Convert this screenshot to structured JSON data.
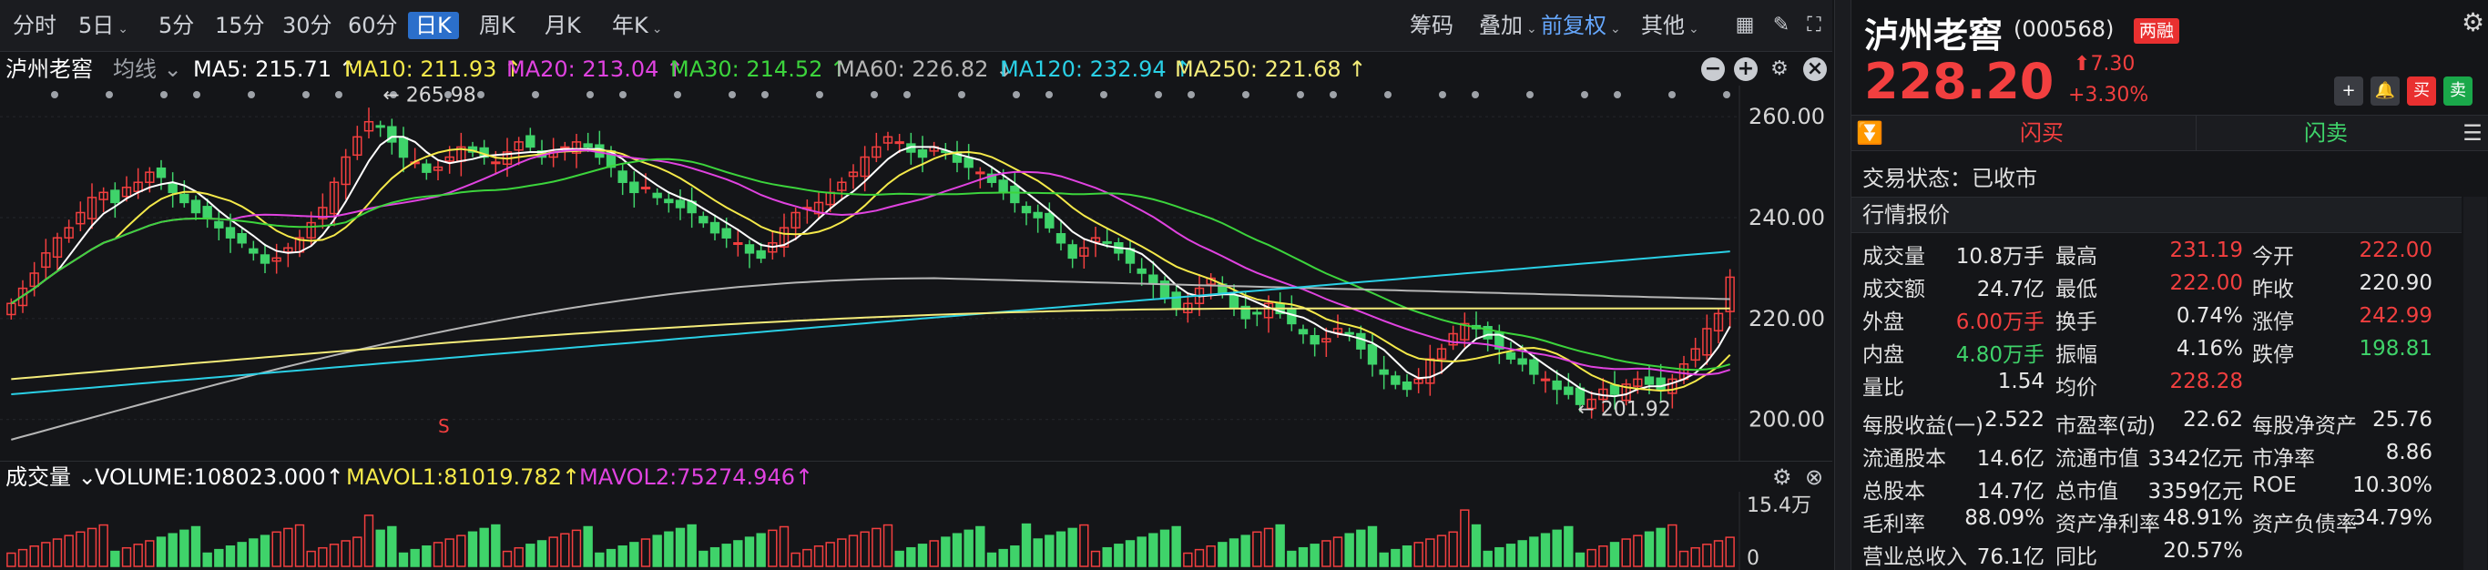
{
  "toolbar": {
    "periods": [
      "分时",
      "5日",
      "5分",
      "15分",
      "30分",
      "60分",
      "日K",
      "周K",
      "月K",
      "年K"
    ],
    "active": "日K",
    "right_items": [
      "筹码",
      "叠加",
      "前复权",
      "其他"
    ]
  },
  "ma_bar": {
    "stock": "泸州老窖",
    "type": "均线",
    "ma5": "MA5: 215.71 ↑",
    "ma10": "MA10: 211.93 ↑",
    "ma20": "MA20: 213.04 ↑",
    "ma30": "MA30: 214.52 ↑",
    "ma60": "MA60: 226.82 ↓",
    "ma120": "MA120: 232.94 ↑",
    "ma250": "MA250: 221.68 ↑"
  },
  "colors": {
    "up": "#f23f3f",
    "down": "#3fd36a",
    "ma5": "#ffffff",
    "ma10": "#f5e94a",
    "ma20": "#e043e0",
    "ma30": "#3cd43c",
    "ma60": "#b6b6b6",
    "ma120": "#2ad0e6",
    "ma250": "#f4ec7a"
  },
  "chart_data": {
    "type": "candlestick",
    "y_ticks": [
      "260.00",
      "240.00",
      "220.00",
      "200.00"
    ],
    "ylim": [
      194,
      264
    ],
    "high_label": "265.98",
    "low_label": "201.92",
    "marker": "S",
    "last_close": 228.2,
    "closes": [
      223,
      226,
      229,
      233,
      236,
      238,
      241,
      244,
      245,
      243,
      246,
      247,
      249,
      248,
      245,
      243,
      241,
      240,
      238,
      236,
      235,
      233,
      231,
      232,
      234,
      236,
      239,
      242,
      247,
      252,
      256,
      259,
      258,
      255,
      252,
      251,
      249,
      250,
      252,
      254,
      253,
      252,
      251,
      253,
      255,
      254,
      252,
      253,
      254,
      255,
      254,
      252,
      250,
      247,
      245,
      246,
      244,
      243,
      242,
      241,
      239,
      237,
      236,
      235,
      233,
      232,
      235,
      238,
      241,
      242,
      243,
      245,
      247,
      249,
      252,
      254,
      256,
      255,
      253,
      252,
      254,
      253,
      251,
      250,
      249,
      247,
      245,
      243,
      241,
      240,
      238,
      235,
      232,
      234,
      236,
      235,
      233,
      231,
      229,
      227,
      224,
      222,
      223,
      226,
      228,
      225,
      222,
      220,
      221,
      223,
      221,
      219,
      217,
      215,
      216,
      218,
      217,
      214,
      211,
      209,
      207,
      206,
      208,
      212,
      214,
      217,
      219,
      218,
      216,
      214,
      212,
      211,
      209,
      208,
      206,
      205,
      203,
      204,
      206,
      205,
      207,
      208,
      207,
      206,
      208,
      211,
      214,
      218,
      221,
      228.2
    ],
    "volume_ticks": [
      "15.4万",
      "0"
    ],
    "ma_vol1": 81019.782,
    "ma_vol2": 75274.946
  },
  "vol_bar": {
    "label": "成交量",
    "volume": "VOLUME:108023.000↑",
    "mavol1": "MAVOL1:81019.782↑",
    "mavol2": "MAVOL2:75274.946↑"
  },
  "quote": {
    "name": "泸州老窖",
    "code": "(000568)",
    "badge": "两融",
    "price": "228.20",
    "change": "7.30",
    "change_pct": "+3.30%",
    "buy": "闪买",
    "sell": "闪卖",
    "status": "交易状态：已收市",
    "section": "行情报价",
    "rows": [
      [
        [
          "成交量",
          "10.8万手",
          "w"
        ],
        [
          "最高",
          "231.19",
          "r"
        ],
        [
          "今开",
          "222.00",
          "r"
        ]
      ],
      [
        [
          "成交额",
          "24.7亿",
          "w"
        ],
        [
          "最低",
          "222.00",
          "r"
        ],
        [
          "昨收",
          "220.90",
          "w"
        ]
      ],
      [
        [
          "外盘",
          "6.00万手",
          "r"
        ],
        [
          "换手",
          "0.74%",
          "w"
        ],
        [
          "涨停",
          "242.99",
          "r"
        ]
      ],
      [
        [
          "内盘",
          "4.80万手",
          "g"
        ],
        [
          "振幅",
          "4.16%",
          "w"
        ],
        [
          "跌停",
          "198.81",
          "g"
        ]
      ],
      [
        [
          "量比",
          "1.54",
          "w"
        ],
        [
          "均价",
          "228.28",
          "r"
        ],
        [
          "",
          "",
          " "
        ]
      ],
      [
        [
          "每股收益(一)",
          "2.522",
          "w"
        ],
        [
          "市盈率(动)",
          "22.62",
          "w"
        ],
        [
          "每股净资产",
          "25.76",
          "w"
        ]
      ],
      [
        [
          "流通股本",
          "14.6亿",
          "w"
        ],
        [
          "流通市值",
          "3342亿元",
          "w"
        ],
        [
          "市净率",
          "8.86",
          "w"
        ]
      ],
      [
        [
          "总股本",
          "14.7亿",
          "w"
        ],
        [
          "总市值",
          "3359亿元",
          "w"
        ],
        [
          "ROE",
          "10.30%",
          "w"
        ]
      ],
      [
        [
          "毛利率",
          "88.09%",
          "w"
        ],
        [
          "资产净利率",
          "48.91%",
          "w"
        ],
        [
          "资产负债率",
          "34.79%",
          "w"
        ]
      ],
      [
        [
          "营业总收入",
          "76.1亿",
          "w"
        ],
        [
          "同比",
          "20.57%",
          "w"
        ],
        [
          "",
          "",
          " "
        ]
      ]
    ]
  }
}
